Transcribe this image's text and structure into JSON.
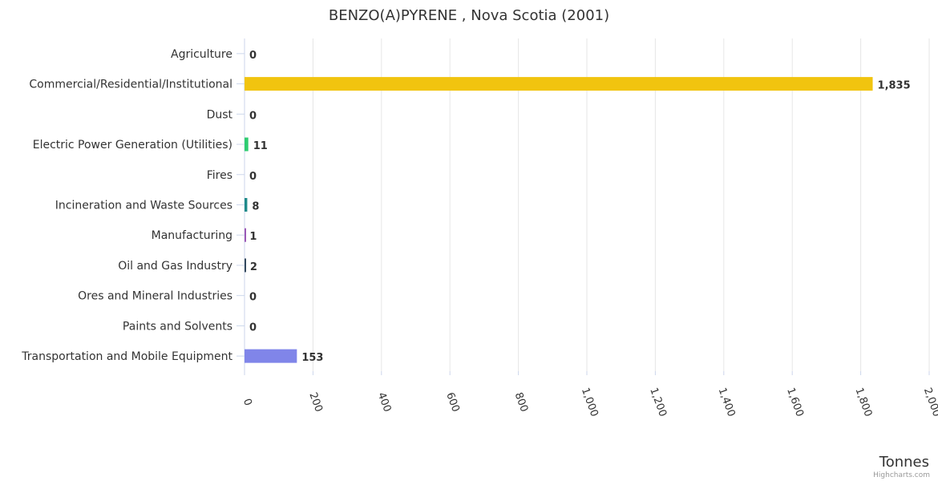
{
  "chart_data": {
    "type": "bar",
    "orientation": "horizontal",
    "title": "BENZO(A)PYRENE , Nova Scotia (2001)",
    "categories": [
      "Agriculture",
      "Commercial/Residential/Institutional",
      "Dust",
      "Electric Power Generation (Utilities)",
      "Fires",
      "Incineration and Waste Sources",
      "Manufacturing",
      "Oil and Gas Industry",
      "Ores and Mineral Industries",
      "Paints and Solvents",
      "Transportation and Mobile Equipment"
    ],
    "values": [
      0,
      1835,
      0,
      11,
      0,
      8,
      1,
      2,
      0,
      0,
      153
    ],
    "value_labels": [
      "0",
      "1,835",
      "0",
      "11",
      "0",
      "8",
      "1",
      "2",
      "0",
      "0",
      "153"
    ],
    "colors": [
      "#7cb5ec",
      "#f1c40f",
      "#7f8c8d",
      "#2ecc71",
      "#e74c3c",
      "#1f8a8a",
      "#9b59b6",
      "#34495e",
      "#e67e22",
      "#95a5a6",
      "#8085e9"
    ],
    "xlabel": "Tonnes",
    "xlim": [
      0,
      2000
    ],
    "xticks": [
      0,
      200,
      400,
      600,
      800,
      1000,
      1200,
      1400,
      1600,
      1800,
      2000
    ],
    "xtick_labels": [
      "0",
      "200",
      "400",
      "600",
      "800",
      "1,000",
      "1,200",
      "1,400",
      "1,600",
      "1,800",
      "2,000"
    ],
    "grid": true
  },
  "credit": "Highcharts.com"
}
